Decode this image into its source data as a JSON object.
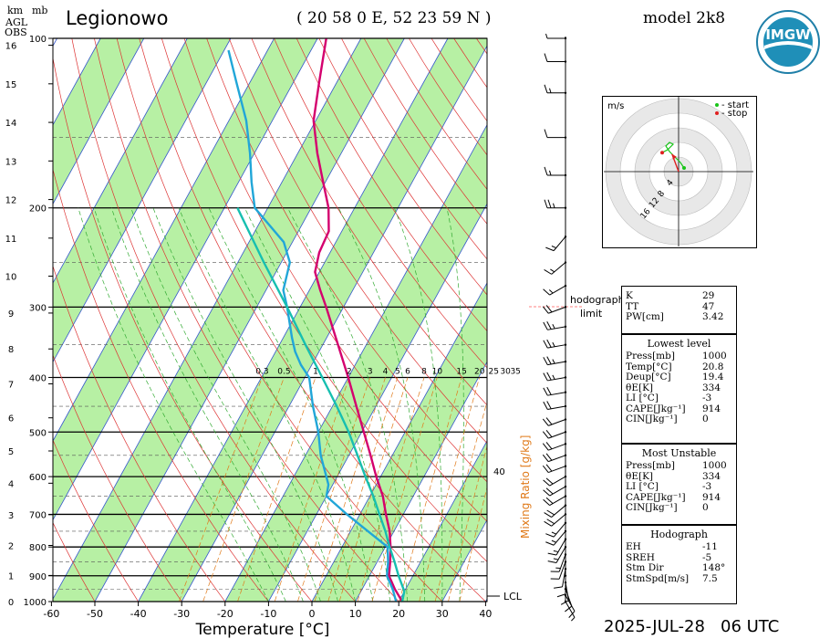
{
  "header": {
    "station": "Legionowo",
    "coords": "( 20 58 0 E, 52 23 59 N )",
    "model": "model 2k8",
    "date": "2025-JUL-28",
    "time": "06 UTC",
    "logo_text": "IMGW"
  },
  "left_axis": {
    "km_header": "km",
    "agl_header": "AGL",
    "obs_header": "OBS",
    "mb_header": "mb",
    "km_ticks": [
      "16",
      "15",
      "14",
      "13",
      "12",
      "11",
      "10",
      "9",
      "8",
      "7",
      "6",
      "5",
      "4",
      "3",
      "2",
      "1",
      "0"
    ],
    "mb_ticks": [
      "100",
      "200",
      "300",
      "400",
      "500",
      "600",
      "700",
      "800",
      "900",
      "1000"
    ]
  },
  "chart_data": {
    "type": "skew-t",
    "xlabel": "Temperature [°C]",
    "x_ticks": [
      -60,
      -50,
      -40,
      -30,
      -20,
      -10,
      0,
      10,
      20,
      30,
      40
    ],
    "y_ticks_hpa": [
      100,
      200,
      300,
      400,
      500,
      600,
      700,
      800,
      900,
      1000
    ],
    "mixing_ratio_label": "Mixing Ratio [g/kg]",
    "mixing_ratio_ticks": [
      "0.3",
      "0.5",
      "1",
      "2",
      "3",
      "4",
      "5",
      "6",
      "8",
      "10",
      "15",
      "20",
      "25",
      "30",
      "35"
    ],
    "mixing_ratio_extra": "40",
    "lcl_label": "LCL",
    "hodograph_limit_label": "hodograph limit",
    "series": [
      {
        "name": "temperature",
        "color": "#d4006e",
        "points": [
          [
            1000,
            20.8
          ],
          [
            950,
            17.5
          ],
          [
            900,
            14.5
          ],
          [
            850,
            13.0
          ],
          [
            800,
            11.2
          ],
          [
            750,
            9.0
          ],
          [
            700,
            6.0
          ],
          [
            650,
            3.0
          ],
          [
            600,
            -1.0
          ],
          [
            550,
            -5.0
          ],
          [
            500,
            -9.5
          ],
          [
            450,
            -14.5
          ],
          [
            400,
            -20.0
          ],
          [
            350,
            -26.5
          ],
          [
            300,
            -34.0
          ],
          [
            280,
            -37.5
          ],
          [
            260,
            -41.0
          ],
          [
            240,
            -42.5
          ],
          [
            220,
            -43.0
          ],
          [
            200,
            -46.0
          ],
          [
            180,
            -50.5
          ],
          [
            160,
            -55.5
          ],
          [
            140,
            -60.5
          ],
          [
            120,
            -64.0
          ],
          [
            100,
            -68.0
          ]
        ]
      },
      {
        "name": "dewpoint",
        "color": "#21a6d8",
        "points": [
          [
            1000,
            19.4
          ],
          [
            950,
            17.0
          ],
          [
            900,
            14.0
          ],
          [
            850,
            12.5
          ],
          [
            800,
            10.5
          ],
          [
            750,
            4.0
          ],
          [
            700,
            -3.0
          ],
          [
            650,
            -10.0
          ],
          [
            620,
            -11.0
          ],
          [
            600,
            -12.5
          ],
          [
            550,
            -16.5
          ],
          [
            500,
            -20.0
          ],
          [
            450,
            -24.5
          ],
          [
            400,
            -29.0
          ],
          [
            380,
            -32.5
          ],
          [
            360,
            -35.5
          ],
          [
            340,
            -38.0
          ],
          [
            300,
            -43.0
          ],
          [
            280,
            -46.0
          ],
          [
            250,
            -48.0
          ],
          [
            230,
            -52.0
          ],
          [
            200,
            -63.0
          ],
          [
            180,
            -67.0
          ],
          [
            160,
            -71.0
          ],
          [
            140,
            -76.0
          ],
          [
            120,
            -83.0
          ],
          [
            105,
            -89.0
          ]
        ]
      },
      {
        "name": "parcel",
        "color": "#17bfb0",
        "points": [
          [
            1000,
            20.8
          ],
          [
            960,
            20.0
          ],
          [
            950,
            19.5
          ],
          [
            900,
            16.7
          ],
          [
            850,
            14.0
          ],
          [
            800,
            11.0
          ],
          [
            750,
            8.0
          ],
          [
            700,
            4.5
          ],
          [
            650,
            0.8
          ],
          [
            600,
            -3.5
          ],
          [
            550,
            -8.0
          ],
          [
            500,
            -13.0
          ],
          [
            450,
            -19.0
          ],
          [
            400,
            -26.0
          ],
          [
            350,
            -34.0
          ],
          [
            300,
            -43.0
          ],
          [
            250,
            -54.0
          ],
          [
            200,
            -67.0
          ]
        ]
      }
    ],
    "wind_profile": [
      {
        "p": 1000,
        "dir": 150,
        "spd": 5
      },
      {
        "p": 975,
        "dir": 150,
        "spd": 10
      },
      {
        "p": 950,
        "dir": 160,
        "spd": 10
      },
      {
        "p": 925,
        "dir": 170,
        "spd": 10
      },
      {
        "p": 900,
        "dir": 180,
        "spd": 10
      },
      {
        "p": 875,
        "dir": 190,
        "spd": 10
      },
      {
        "p": 850,
        "dir": 200,
        "spd": 10
      },
      {
        "p": 825,
        "dir": 200,
        "spd": 15
      },
      {
        "p": 800,
        "dir": 210,
        "spd": 15
      },
      {
        "p": 775,
        "dir": 210,
        "spd": 15
      },
      {
        "p": 750,
        "dir": 220,
        "spd": 15
      },
      {
        "p": 725,
        "dir": 220,
        "spd": 15
      },
      {
        "p": 700,
        "dir": 230,
        "spd": 20
      },
      {
        "p": 675,
        "dir": 230,
        "spd": 20
      },
      {
        "p": 650,
        "dir": 240,
        "spd": 20
      },
      {
        "p": 625,
        "dir": 240,
        "spd": 20
      },
      {
        "p": 600,
        "dir": 240,
        "spd": 20
      },
      {
        "p": 575,
        "dir": 250,
        "spd": 20
      },
      {
        "p": 550,
        "dir": 250,
        "spd": 20
      },
      {
        "p": 525,
        "dir": 250,
        "spd": 20
      },
      {
        "p": 500,
        "dir": 250,
        "spd": 20
      },
      {
        "p": 475,
        "dir": 250,
        "spd": 20
      },
      {
        "p": 450,
        "dir": 260,
        "spd": 20
      },
      {
        "p": 425,
        "dir": 260,
        "spd": 20
      },
      {
        "p": 400,
        "dir": 260,
        "spd": 25
      },
      {
        "p": 375,
        "dir": 260,
        "spd": 25
      },
      {
        "p": 350,
        "dir": 260,
        "spd": 25
      },
      {
        "p": 325,
        "dir": 260,
        "spd": 25
      },
      {
        "p": 300,
        "dir": 250,
        "spd": 20
      },
      {
        "p": 275,
        "dir": 240,
        "spd": 15
      },
      {
        "p": 250,
        "dir": 230,
        "spd": 15
      },
      {
        "p": 225,
        "dir": 220,
        "spd": 15
      },
      {
        "p": 200,
        "dir": 270,
        "spd": 25
      },
      {
        "p": 175,
        "dir": 270,
        "spd": 15
      },
      {
        "p": 150,
        "dir": 270,
        "spd": 10
      },
      {
        "p": 125,
        "dir": 270,
        "spd": 15
      },
      {
        "p": 110,
        "dir": 270,
        "spd": 10
      },
      {
        "p": 100,
        "dir": 270,
        "spd": 5
      }
    ]
  },
  "hodograph": {
    "unit_label": "m/s",
    "legend_start": "- start",
    "legend_stop": "- stop",
    "ring_labels": [
      "4",
      "8",
      "12",
      "16"
    ],
    "start_color": "#18c418",
    "stop_color": "#e02020",
    "path_uv": [
      [
        1.5,
        1.0
      ],
      [
        0.5,
        2.5
      ],
      [
        -0.5,
        3.5
      ],
      [
        -1.5,
        4.5
      ],
      [
        -2.5,
        5.5
      ],
      [
        -3.5,
        7.0
      ],
      [
        -2.5,
        8.0
      ],
      [
        -1.5,
        7.5
      ],
      [
        -3.0,
        6.0
      ],
      [
        -4.5,
        5.2
      ]
    ],
    "storm_motion_uv": [
      [
        0,
        0
      ],
      [
        -1.8,
        4.8
      ]
    ]
  },
  "stats": {
    "indices": [
      {
        "k": "K",
        "v": "29"
      },
      {
        "k": "TT",
        "v": "47"
      },
      {
        "k": "PW[cm]",
        "v": "3.42"
      }
    ],
    "lowest_level_title": "Lowest level",
    "lowest_level": [
      {
        "k": "Press[mb]",
        "v": "1000"
      },
      {
        "k": "Temp[°C]",
        "v": "20.8"
      },
      {
        "k": "Deup[°C]",
        "v": "19.4"
      },
      {
        "k": "θE[K]",
        "v": "334"
      },
      {
        "k": "LI [°C]",
        "v": "-3"
      },
      {
        "k": "CAPE[Jkg⁻¹]",
        "v": "914"
      },
      {
        "k": "CIN[Jkg⁻¹]",
        "v": "0"
      }
    ],
    "most_unstable_title": "Most Unstable",
    "most_unstable": [
      {
        "k": "Press[mb]",
        "v": "1000"
      },
      {
        "k": "θE[K]",
        "v": "334"
      },
      {
        "k": "LI [°C]",
        "v": "-3"
      },
      {
        "k": "CAPE[Jkg⁻¹]",
        "v": "914"
      },
      {
        "k": "CIN[Jkg⁻¹]",
        "v": "0"
      }
    ],
    "hodograph_title": "Hodograph",
    "hodograph_params": [
      {
        "k": "EH",
        "v": "-11"
      },
      {
        "k": "SREH",
        "v": "-5"
      },
      {
        "k": "Stm Dir",
        "v": "148°"
      },
      {
        "k": "StmSpd[m/s]",
        "v": "7.5"
      }
    ]
  },
  "colors": {
    "green_band": "#b7f0a4",
    "isotherm": "#3355cc",
    "dry_adiabat": "#dd3333",
    "moist_adiabat": "#33aa33",
    "mixing_ratio": "#e07a1a"
  }
}
